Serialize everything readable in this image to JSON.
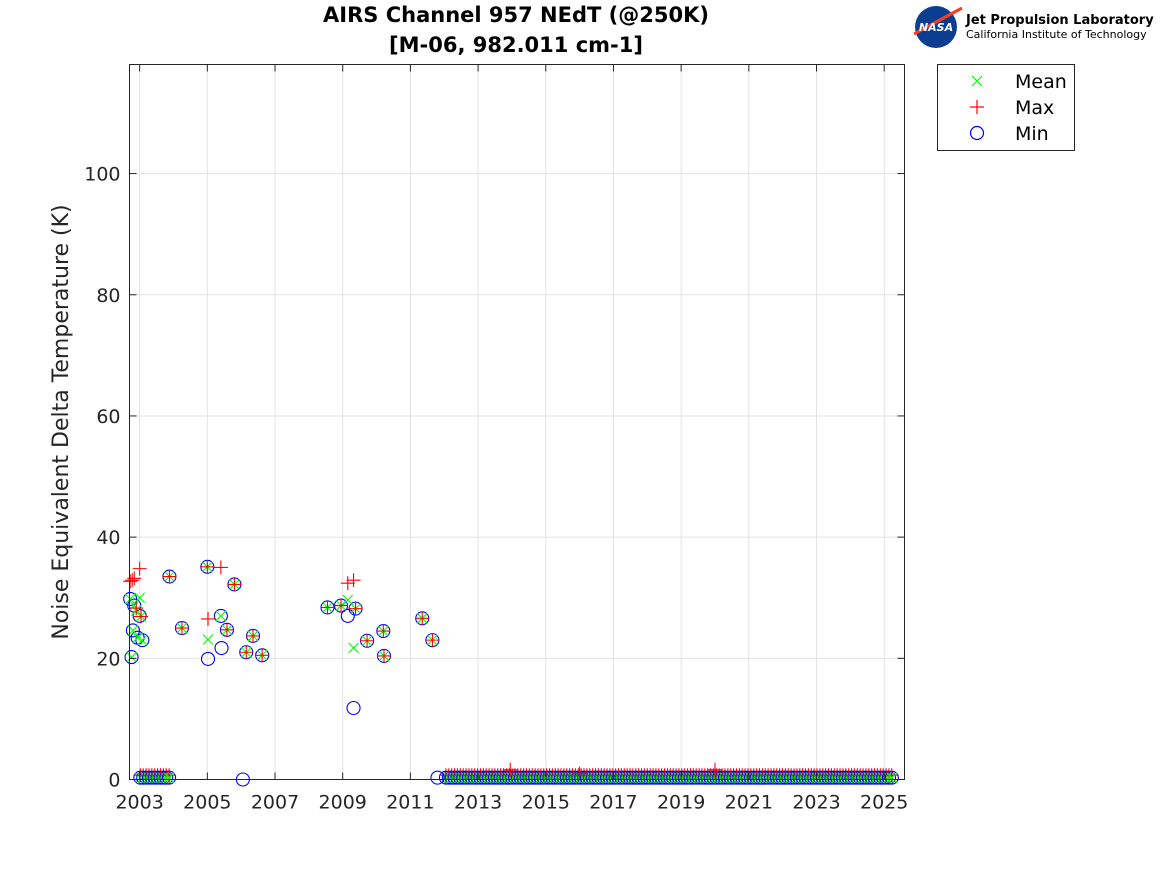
{
  "chart_data": {
    "type": "scatter",
    "title": "AIRS Channel 957 NEdT (@250K)",
    "subtitle": "[M-06, 982.011 cm-1]",
    "xlabel": "",
    "ylabel": "Noise Equivalent Delta Temperature (K)",
    "xlim": [
      2002.7,
      2025.6
    ],
    "ylim": [
      0,
      118
    ],
    "xticks": [
      2003,
      2005,
      2007,
      2009,
      2011,
      2013,
      2015,
      2017,
      2019,
      2021,
      2023,
      2025
    ],
    "yticks": [
      0,
      20,
      40,
      60,
      80,
      100
    ],
    "grid": true,
    "legend_position": "outside-top-right",
    "series": [
      {
        "name": "Mean",
        "marker": "x",
        "color": "#00ff00",
        "points": [
          [
            2002.72,
            29.8
          ],
          [
            2002.76,
            20.2
          ],
          [
            2002.8,
            24.6
          ],
          [
            2002.84,
            28.7
          ],
          [
            2002.9,
            27.9
          ],
          [
            2002.94,
            23.4
          ],
          [
            2003.0,
            30.0
          ],
          [
            2003.04,
            26.9
          ],
          [
            2003.08,
            23.0
          ],
          [
            2003.88,
            33.5
          ],
          [
            2004.25,
            25.0
          ],
          [
            2005.0,
            35.1
          ],
          [
            2005.02,
            23.1
          ],
          [
            2005.4,
            27.0
          ],
          [
            2005.58,
            24.7
          ],
          [
            2005.8,
            32.2
          ],
          [
            2006.15,
            21.0
          ],
          [
            2006.35,
            23.7
          ],
          [
            2006.62,
            20.5
          ],
          [
            2008.55,
            28.4
          ],
          [
            2008.95,
            28.7
          ],
          [
            2009.15,
            29.6
          ],
          [
            2009.32,
            21.7
          ],
          [
            2009.38,
            28.2
          ],
          [
            2009.72,
            22.9
          ],
          [
            2010.2,
            24.5
          ],
          [
            2010.22,
            20.4
          ],
          [
            2011.35,
            26.6
          ],
          [
            2011.65,
            23.0
          ]
        ]
      },
      {
        "name": "Max",
        "marker": "+",
        "color": "#ff0000",
        "points": [
          [
            2002.72,
            32.7
          ],
          [
            2002.78,
            32.9
          ],
          [
            2002.84,
            33.2
          ],
          [
            2002.9,
            28.3
          ],
          [
            2003.0,
            34.8
          ],
          [
            2003.04,
            26.9
          ],
          [
            2003.88,
            33.5
          ],
          [
            2004.25,
            25.0
          ],
          [
            2005.0,
            35.1
          ],
          [
            2005.02,
            26.5
          ],
          [
            2005.4,
            35.0
          ],
          [
            2005.58,
            24.7
          ],
          [
            2005.8,
            32.2
          ],
          [
            2006.15,
            21.0
          ],
          [
            2006.35,
            23.7
          ],
          [
            2006.62,
            20.5
          ],
          [
            2008.55,
            28.4
          ],
          [
            2008.95,
            28.7
          ],
          [
            2009.15,
            32.4
          ],
          [
            2009.32,
            32.9
          ],
          [
            2009.38,
            28.2
          ],
          [
            2009.72,
            22.9
          ],
          [
            2010.2,
            24.5
          ],
          [
            2010.22,
            20.4
          ],
          [
            2011.35,
            26.6
          ],
          [
            2011.65,
            23.0
          ],
          [
            2013.95,
            1.6
          ],
          [
            2016.0,
            1.0
          ],
          [
            2020.0,
            1.6
          ]
        ]
      },
      {
        "name": "Min",
        "marker": "o",
        "color": "#0000ff",
        "points": [
          [
            2002.72,
            29.8
          ],
          [
            2002.76,
            20.2
          ],
          [
            2002.8,
            24.6
          ],
          [
            2002.84,
            28.7
          ],
          [
            2002.94,
            23.4
          ],
          [
            2003.0,
            27.0
          ],
          [
            2003.08,
            23.0
          ],
          [
            2003.88,
            33.5
          ],
          [
            2004.25,
            25.0
          ],
          [
            2005.0,
            35.1
          ],
          [
            2005.02,
            19.9
          ],
          [
            2005.4,
            27.0
          ],
          [
            2005.42,
            21.7
          ],
          [
            2005.58,
            24.7
          ],
          [
            2005.8,
            32.2
          ],
          [
            2006.05,
            0.0
          ],
          [
            2006.15,
            21.0
          ],
          [
            2006.35,
            23.7
          ],
          [
            2006.62,
            20.5
          ],
          [
            2008.55,
            28.4
          ],
          [
            2008.95,
            28.7
          ],
          [
            2009.15,
            27.0
          ],
          [
            2009.32,
            11.8
          ],
          [
            2009.38,
            28.2
          ],
          [
            2009.72,
            22.9
          ],
          [
            2010.2,
            24.5
          ],
          [
            2010.22,
            20.4
          ],
          [
            2011.35,
            26.6
          ],
          [
            2011.65,
            23.0
          ],
          [
            2011.8,
            0.3
          ]
        ]
      }
    ],
    "dense_low_segments": [
      {
        "start": 2003.02,
        "end": 2003.9,
        "step": 0.085,
        "value": 0.3
      },
      {
        "start": 2012.05,
        "end": 2025.3,
        "step": 0.085,
        "value": 0.3
      }
    ]
  },
  "logo": {
    "badge_text": "NASA",
    "title": "Jet Propulsion Laboratory",
    "subtitle": "California Institute of Technology"
  }
}
